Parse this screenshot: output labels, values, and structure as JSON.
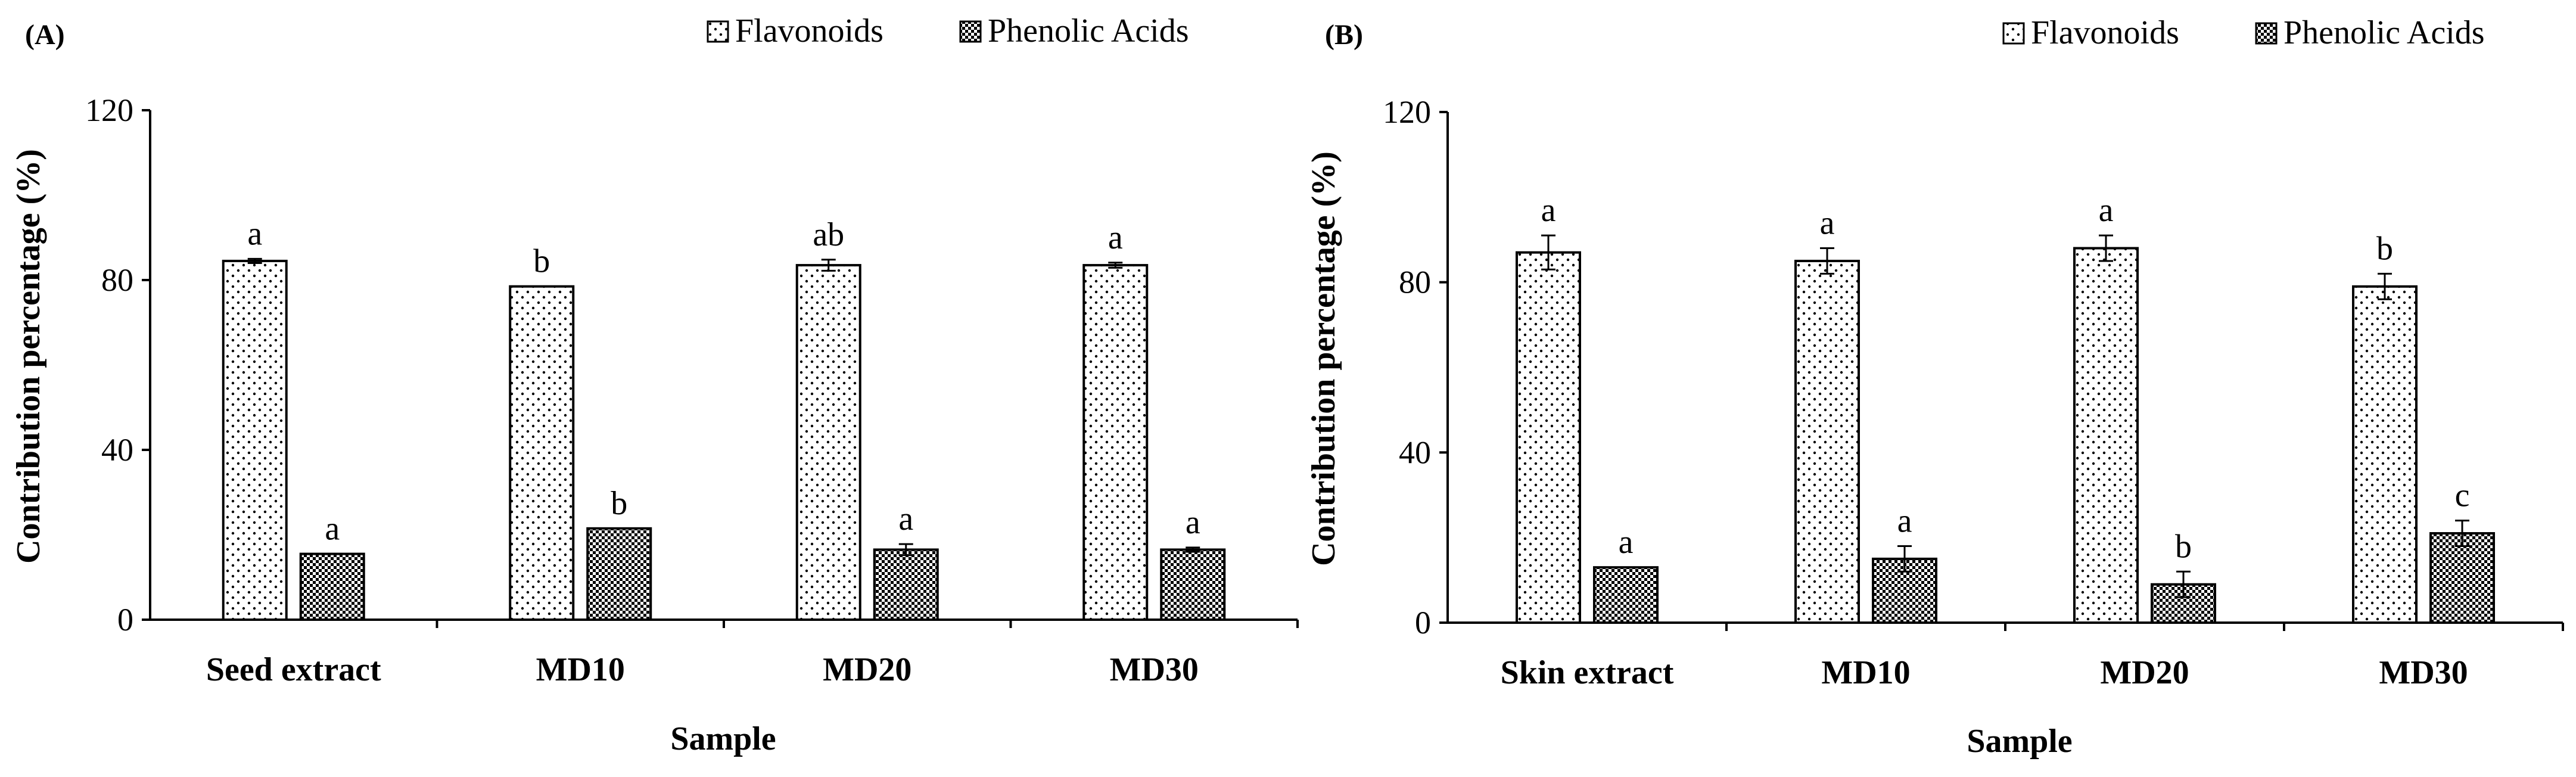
{
  "chart_data": [
    {
      "type": "bar",
      "panel_label": "(A)",
      "categories": [
        "Seed extract",
        "MD10",
        "MD20",
        "MD30"
      ],
      "series": [
        {
          "name": "Flavonoids",
          "pattern": "dots",
          "values": [
            84.5,
            78.5,
            83.5,
            83.5
          ],
          "errors": [
            0.5,
            0.0,
            1.3,
            0.6
          ],
          "letters": [
            "a",
            "b",
            "ab",
            "a"
          ]
        },
        {
          "name": "Phenolic Acids",
          "pattern": "checker",
          "values": [
            15.5,
            21.5,
            16.5,
            16.5
          ],
          "errors": [
            0.0,
            0.0,
            1.3,
            0.5
          ],
          "letters": [
            "a",
            "b",
            "a",
            "a"
          ]
        }
      ],
      "xlabel": "Sample",
      "ylabel": "Contribution percentage  (%)",
      "ylim": [
        0,
        120
      ],
      "yticks": [
        0,
        40,
        80,
        120
      ],
      "legend_position": "top-right",
      "grid": false
    },
    {
      "type": "bar",
      "panel_label": "(B)",
      "categories": [
        "Skin extract",
        "MD10",
        "MD20",
        "MD30"
      ],
      "series": [
        {
          "name": "Flavonoids",
          "pattern": "dots",
          "values": [
            87,
            85,
            88,
            79
          ],
          "errors": [
            4.0,
            3.0,
            3.0,
            3.0
          ],
          "letters": [
            "a",
            "a",
            "a",
            "b"
          ]
        },
        {
          "name": "Phenolic Acids",
          "pattern": "checker",
          "values": [
            13,
            15,
            9,
            21
          ],
          "errors": [
            0.0,
            3.0,
            3.0,
            3.0
          ],
          "letters": [
            "a",
            "a",
            "b",
            "c"
          ]
        }
      ],
      "xlabel": "Sample",
      "ylabel": "Contribution percentage  (%)",
      "ylim": [
        0,
        120
      ],
      "yticks": [
        0,
        40,
        80,
        120
      ],
      "legend_position": "top-right",
      "grid": false
    }
  ]
}
